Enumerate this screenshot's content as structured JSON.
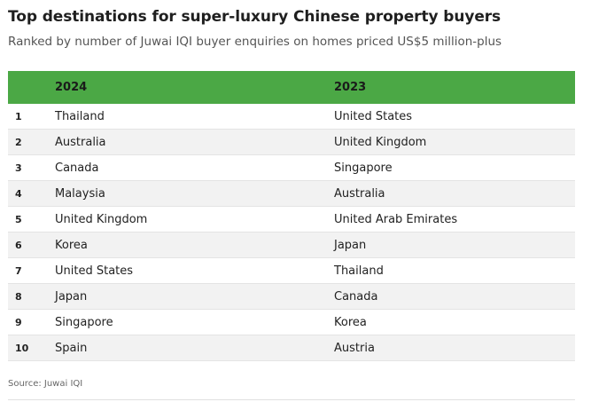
{
  "title": "Top destinations for super-luxury Chinese property buyers",
  "subtitle": "Ranked by number of Juwai IQI buyer enquiries on homes priced US$5 million-plus",
  "source": "Source: Juwai IQI",
  "colors": {
    "header_bg": "#4ba845",
    "row_alt_bg": "#f2f2f2"
  },
  "chart_data": {
    "type": "table",
    "columns": [
      "",
      "2024",
      "2023"
    ],
    "rows": [
      {
        "rank": "1",
        "y2024": "Thailand",
        "y2023": "United States"
      },
      {
        "rank": "2",
        "y2024": "Australia",
        "y2023": "United Kingdom"
      },
      {
        "rank": "3",
        "y2024": "Canada",
        "y2023": "Singapore"
      },
      {
        "rank": "4",
        "y2024": "Malaysia",
        "y2023": "Australia"
      },
      {
        "rank": "5",
        "y2024": "United Kingdom",
        "y2023": "United Arab Emirates"
      },
      {
        "rank": "6",
        "y2024": "Korea",
        "y2023": "Japan"
      },
      {
        "rank": "7",
        "y2024": "United States",
        "y2023": "Thailand"
      },
      {
        "rank": "8",
        "y2024": "Japan",
        "y2023": "Canada"
      },
      {
        "rank": "9",
        "y2024": "Singapore",
        "y2023": "Korea"
      },
      {
        "rank": "10",
        "y2024": "Spain",
        "y2023": "Austria"
      }
    ]
  }
}
